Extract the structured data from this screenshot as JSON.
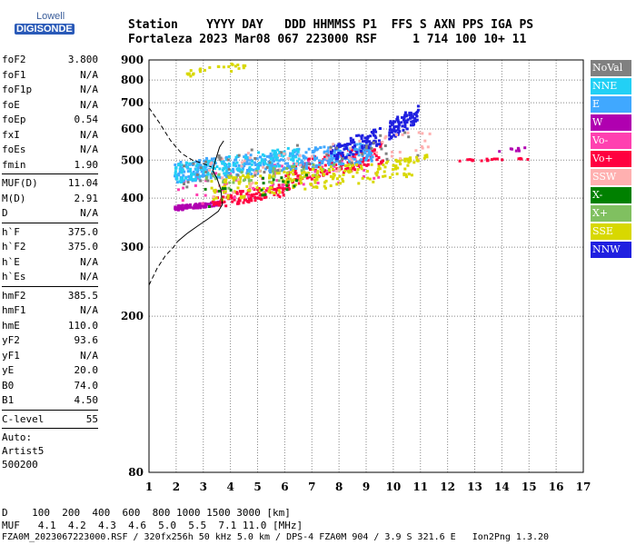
{
  "logo": {
    "line1": "Lowell",
    "line2": "DIGISONDE"
  },
  "header": {
    "row1": "Station    YYYY DAY   DDD HHMMSS P1  FFS S AXN PPS IGA PS",
    "row2": "Fortaleza 2023 Mar08 067 223000 RSF     1 714 100 10+ 11"
  },
  "params": [
    {
      "k": "foF2",
      "v": "3.800"
    },
    {
      "k": "foF1",
      "v": "N/A"
    },
    {
      "k": "foF1p",
      "v": "N/A"
    },
    {
      "k": "foE",
      "v": "N/A"
    },
    {
      "k": "foEp",
      "v": "0.54"
    },
    {
      "k": "fxI",
      "v": "N/A"
    },
    {
      "k": "foEs",
      "v": "N/A"
    },
    {
      "k": "fmin",
      "v": "1.90"
    },
    {
      "k": "MUF(D)",
      "v": "11.04"
    },
    {
      "k": "M(D)",
      "v": "2.91"
    },
    {
      "k": "D",
      "v": "N/A"
    },
    {
      "k": "h`F",
      "v": "375.0"
    },
    {
      "k": "h`F2",
      "v": "375.0"
    },
    {
      "k": "h`E",
      "v": "N/A"
    },
    {
      "k": "h`Es",
      "v": "N/A"
    },
    {
      "k": "hmF2",
      "v": "385.5"
    },
    {
      "k": "hmF1",
      "v": "N/A"
    },
    {
      "k": "hmE",
      "v": "110.0"
    },
    {
      "k": "yF2",
      "v": "93.6"
    },
    {
      "k": "yF1",
      "v": "N/A"
    },
    {
      "k": "yE",
      "v": "20.0"
    },
    {
      "k": "B0",
      "v": "74.0"
    },
    {
      "k": "B1",
      "v": "4.50"
    },
    {
      "k": "C-level",
      "v": "55"
    }
  ],
  "auto": {
    "line1": "Auto:",
    "line2": "Artist5",
    "line3": "500200"
  },
  "legend": [
    {
      "label": "NoVal",
      "color": "#808080"
    },
    {
      "label": "NNE",
      "color": "#22d0f5"
    },
    {
      "label": "E",
      "color": "#40a8ff"
    },
    {
      "label": "W",
      "color": "#b000b0"
    },
    {
      "label": "Vo-",
      "color": "#ff40b0"
    },
    {
      "label": "Vo+",
      "color": "#ff0040"
    },
    {
      "label": "SSW",
      "color": "#ffb0b0"
    },
    {
      "label": "X-",
      "color": "#008000"
    },
    {
      "label": "X+",
      "color": "#80c060"
    },
    {
      "label": "SSE",
      "color": "#d8d800"
    },
    {
      "label": "NNW",
      "color": "#2020e0"
    }
  ],
  "footer": {
    "line1": "D    100  200  400  600  800 1000 1500 3000 [km]",
    "line2": "MUF   4.1  4.2  4.3  4.6  5.0  5.5  7.1 11.0 [MHz]",
    "line3": "FZA0M_2023067223000.RSF / 320fx256h 50 kHz 5.0 km / DPS-4 FZA0M 904 / 3.9 S 321.6 E   Ion2Png 1.3.20"
  },
  "chart_data": {
    "type": "scatter",
    "title": "",
    "xlabel": "",
    "ylabel": "",
    "xlim": [
      1,
      17
    ],
    "ylim": [
      80,
      900
    ],
    "y_scale": "log",
    "x_ticks": [
      1,
      2,
      3,
      4,
      5,
      6,
      7,
      8,
      9,
      10,
      11,
      12,
      13,
      14,
      15,
      16,
      17
    ],
    "y_ticks": [
      80,
      200,
      300,
      400,
      500,
      600,
      700,
      800,
      900
    ],
    "grid": true,
    "legend_position": "right",
    "clusters": [
      {
        "name": "W",
        "color": "#b000b0",
        "x": [
          1.9,
          3.6
        ],
        "y": [
          375,
          395
        ],
        "n": 90
      },
      {
        "name": "Vo+",
        "color": "#ff0040",
        "x": [
          3.3,
          6.2
        ],
        "y": [
          380,
          440
        ],
        "n": 110
      },
      {
        "name": "Vo+",
        "color": "#ff0040",
        "x": [
          6.0,
          9.6
        ],
        "y": [
          430,
          560
        ],
        "n": 150
      },
      {
        "name": "Vo-",
        "color": "#ff40b0",
        "x": [
          2.0,
          9.5
        ],
        "y": [
          380,
          530
        ],
        "n": 70
      },
      {
        "name": "E",
        "color": "#40a8ff",
        "x": [
          1.9,
          9.2
        ],
        "y": [
          440,
          560
        ],
        "n": 400
      },
      {
        "name": "NNE",
        "color": "#22d0f5",
        "x": [
          1.9,
          6.5
        ],
        "y": [
          440,
          545
        ],
        "n": 150
      },
      {
        "name": "X+",
        "color": "#80c060",
        "x": [
          3.0,
          8.0
        ],
        "y": [
          420,
          500
        ],
        "n": 60
      },
      {
        "name": "SSE",
        "color": "#d8d800",
        "x": [
          3.2,
          10.8
        ],
        "y": [
          395,
          510
        ],
        "n": 200
      },
      {
        "name": "NNW",
        "color": "#2020e0",
        "x": [
          7.6,
          9.5
        ],
        "y": [
          490,
          610
        ],
        "n": 90
      },
      {
        "name": "NNW",
        "color": "#2020e0",
        "x": [
          9.8,
          10.9
        ],
        "y": [
          560,
          700
        ],
        "n": 90
      },
      {
        "name": "SSW",
        "color": "#ffb0b0",
        "x": [
          3.0,
          11.3
        ],
        "y": [
          400,
          620
        ],
        "n": 60
      },
      {
        "name": "X-",
        "color": "#008000",
        "x": [
          3.0,
          7.0
        ],
        "y": [
          380,
          480
        ],
        "n": 20
      },
      {
        "name": "NoVal",
        "color": "#808080",
        "x": [
          2.0,
          11.0
        ],
        "y": [
          420,
          600
        ],
        "n": 50
      },
      {
        "name": "SSE",
        "color": "#d8d800",
        "x": [
          2.3,
          4.5
        ],
        "y": [
          820,
          895
        ],
        "n": 25
      },
      {
        "name": "SSE",
        "color": "#d8d800",
        "x": [
          10,
          11.2
        ],
        "y": [
          490,
          520
        ],
        "n": 25
      },
      {
        "name": "Vo+",
        "color": "#ff0040",
        "x": [
          12.3,
          15
        ],
        "y": [
          500,
          510
        ],
        "n": 20
      },
      {
        "name": "W",
        "color": "#b000b0",
        "x": [
          13.8,
          15
        ],
        "y": [
          525,
          545
        ],
        "n": 8
      }
    ],
    "profile_solid": [
      [
        2.05,
        310
      ],
      [
        2.4,
        325
      ],
      [
        2.8,
        340
      ],
      [
        3.2,
        355
      ],
      [
        3.55,
        370
      ],
      [
        3.7,
        385
      ],
      [
        3.65,
        420
      ],
      [
        3.5,
        450
      ],
      [
        3.35,
        470
      ],
      [
        3.45,
        500
      ],
      [
        3.6,
        540
      ],
      [
        3.75,
        560
      ]
    ],
    "profile_dashed_low": [
      [
        1.0,
        240
      ],
      [
        1.3,
        265
      ],
      [
        1.6,
        285
      ],
      [
        1.9,
        300
      ],
      [
        2.05,
        310
      ]
    ],
    "profile_dashed_high": [
      [
        1.0,
        680
      ],
      [
        1.4,
        620
      ],
      [
        1.8,
        560
      ],
      [
        2.2,
        520
      ],
      [
        2.6,
        500
      ],
      [
        3.0,
        490
      ],
      [
        3.3,
        480
      ]
    ]
  }
}
